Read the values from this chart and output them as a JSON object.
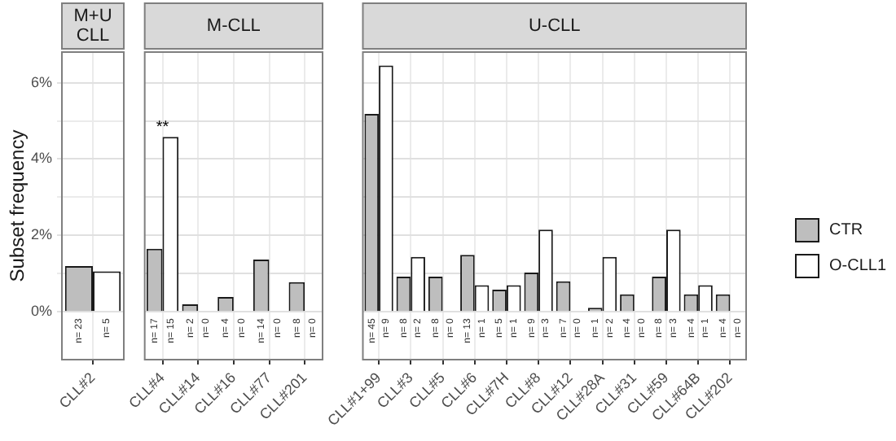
{
  "chart_data": [
    {
      "type": "bar",
      "title": "M+U CLL",
      "ylabel": "Subset frequency",
      "categories": [
        "CLL#2"
      ],
      "annotations": [
        "n= 23",
        "n= 5"
      ],
      "ylim": [
        -1.25,
        6.8
      ],
      "yticks": [
        {
          "value": 0,
          "label": "0%"
        },
        {
          "value": 1,
          "label": null
        },
        {
          "value": 2,
          "label": "2%"
        },
        {
          "value": 3,
          "label": null
        },
        {
          "value": 4,
          "label": "4%"
        },
        {
          "value": 5,
          "label": null
        },
        {
          "value": 6,
          "label": "6%"
        }
      ],
      "grid": true,
      "series": [
        {
          "color": "#bebebe",
          "values": [
            1.2
          ]
        },
        {
          "color": "#ffffff",
          "values": [
            1.06
          ]
        }
      ]
    },
    {
      "type": "bar",
      "title": "M-CLL",
      "categories": [
        "CLL#4",
        "CLL#14",
        "CLL#16",
        "CLL#77",
        "CLL#201"
      ],
      "ylim": [
        -1.25,
        6.8
      ],
      "yticks": [
        0,
        1,
        2,
        3,
        4,
        5,
        6
      ],
      "grid": true,
      "tick_labels": "x",
      "annotations": [
        {
          "text": "**",
          "x": "CLL#4",
          "y": 4.58
        },
        "n= 17",
        "n= 15",
        "n= 2",
        "n= 0",
        "n= 4",
        "n= 0",
        "n= 14",
        "n= 0",
        "n= 8",
        "n= 0"
      ],
      "series": [
        {
          "color": "#bebebe",
          "values": [
            1.65,
            0.2,
            0.39,
            1.37,
            0.78
          ]
        },
        {
          "color": "#ffffff",
          "values": [
            4.58,
            0,
            0,
            0,
            0
          ]
        }
      ]
    },
    {
      "type": "bar",
      "title": "U-CLL",
      "categories": [
        "CLL#1+99",
        "CLL#3",
        "CLL#5",
        "CLL#6",
        "CLL#7H",
        "CLL#8",
        "CLL#12",
        "CLL#28A",
        "CLL#31",
        "CLL#59",
        "CLL#64B",
        "CLL#202"
      ],
      "ylim": [
        -1.25,
        6.8
      ],
      "yticks": [
        0,
        1,
        2,
        3,
        4,
        5,
        6
      ],
      "grid": true,
      "tick_labels": "x",
      "legend": "right",
      "annotations": [
        "n= 45",
        "n= 9",
        "n= 8",
        "n= 2",
        "n= 8",
        "n= 0",
        "n= 13",
        "n= 1",
        "n= 5",
        "n= 1",
        "n= 9",
        "n= 3",
        "n= 7",
        "n= 0",
        "n= 1",
        "n= 2",
        "n= 4",
        "n= 0",
        "n= 8",
        "n= 3",
        "n= 4",
        "n= 1",
        "n= 4",
        "n= 0"
      ],
      "series": [
        {
          "name": "CTR",
          "color": "#bebebe",
          "values": [
            5.18,
            0.92,
            0.92,
            1.49,
            0.58,
            1.03,
            0.8,
            0.11,
            0.46,
            0.92,
            0.46,
            0.46
          ]
        },
        {
          "name": "O-CLL1",
          "color": "#ffffff",
          "values": [
            6.45,
            1.44,
            0,
            0.7,
            0.7,
            2.15,
            0,
            1.44,
            0,
            2.15,
            0.7,
            0
          ]
        }
      ]
    }
  ]
}
